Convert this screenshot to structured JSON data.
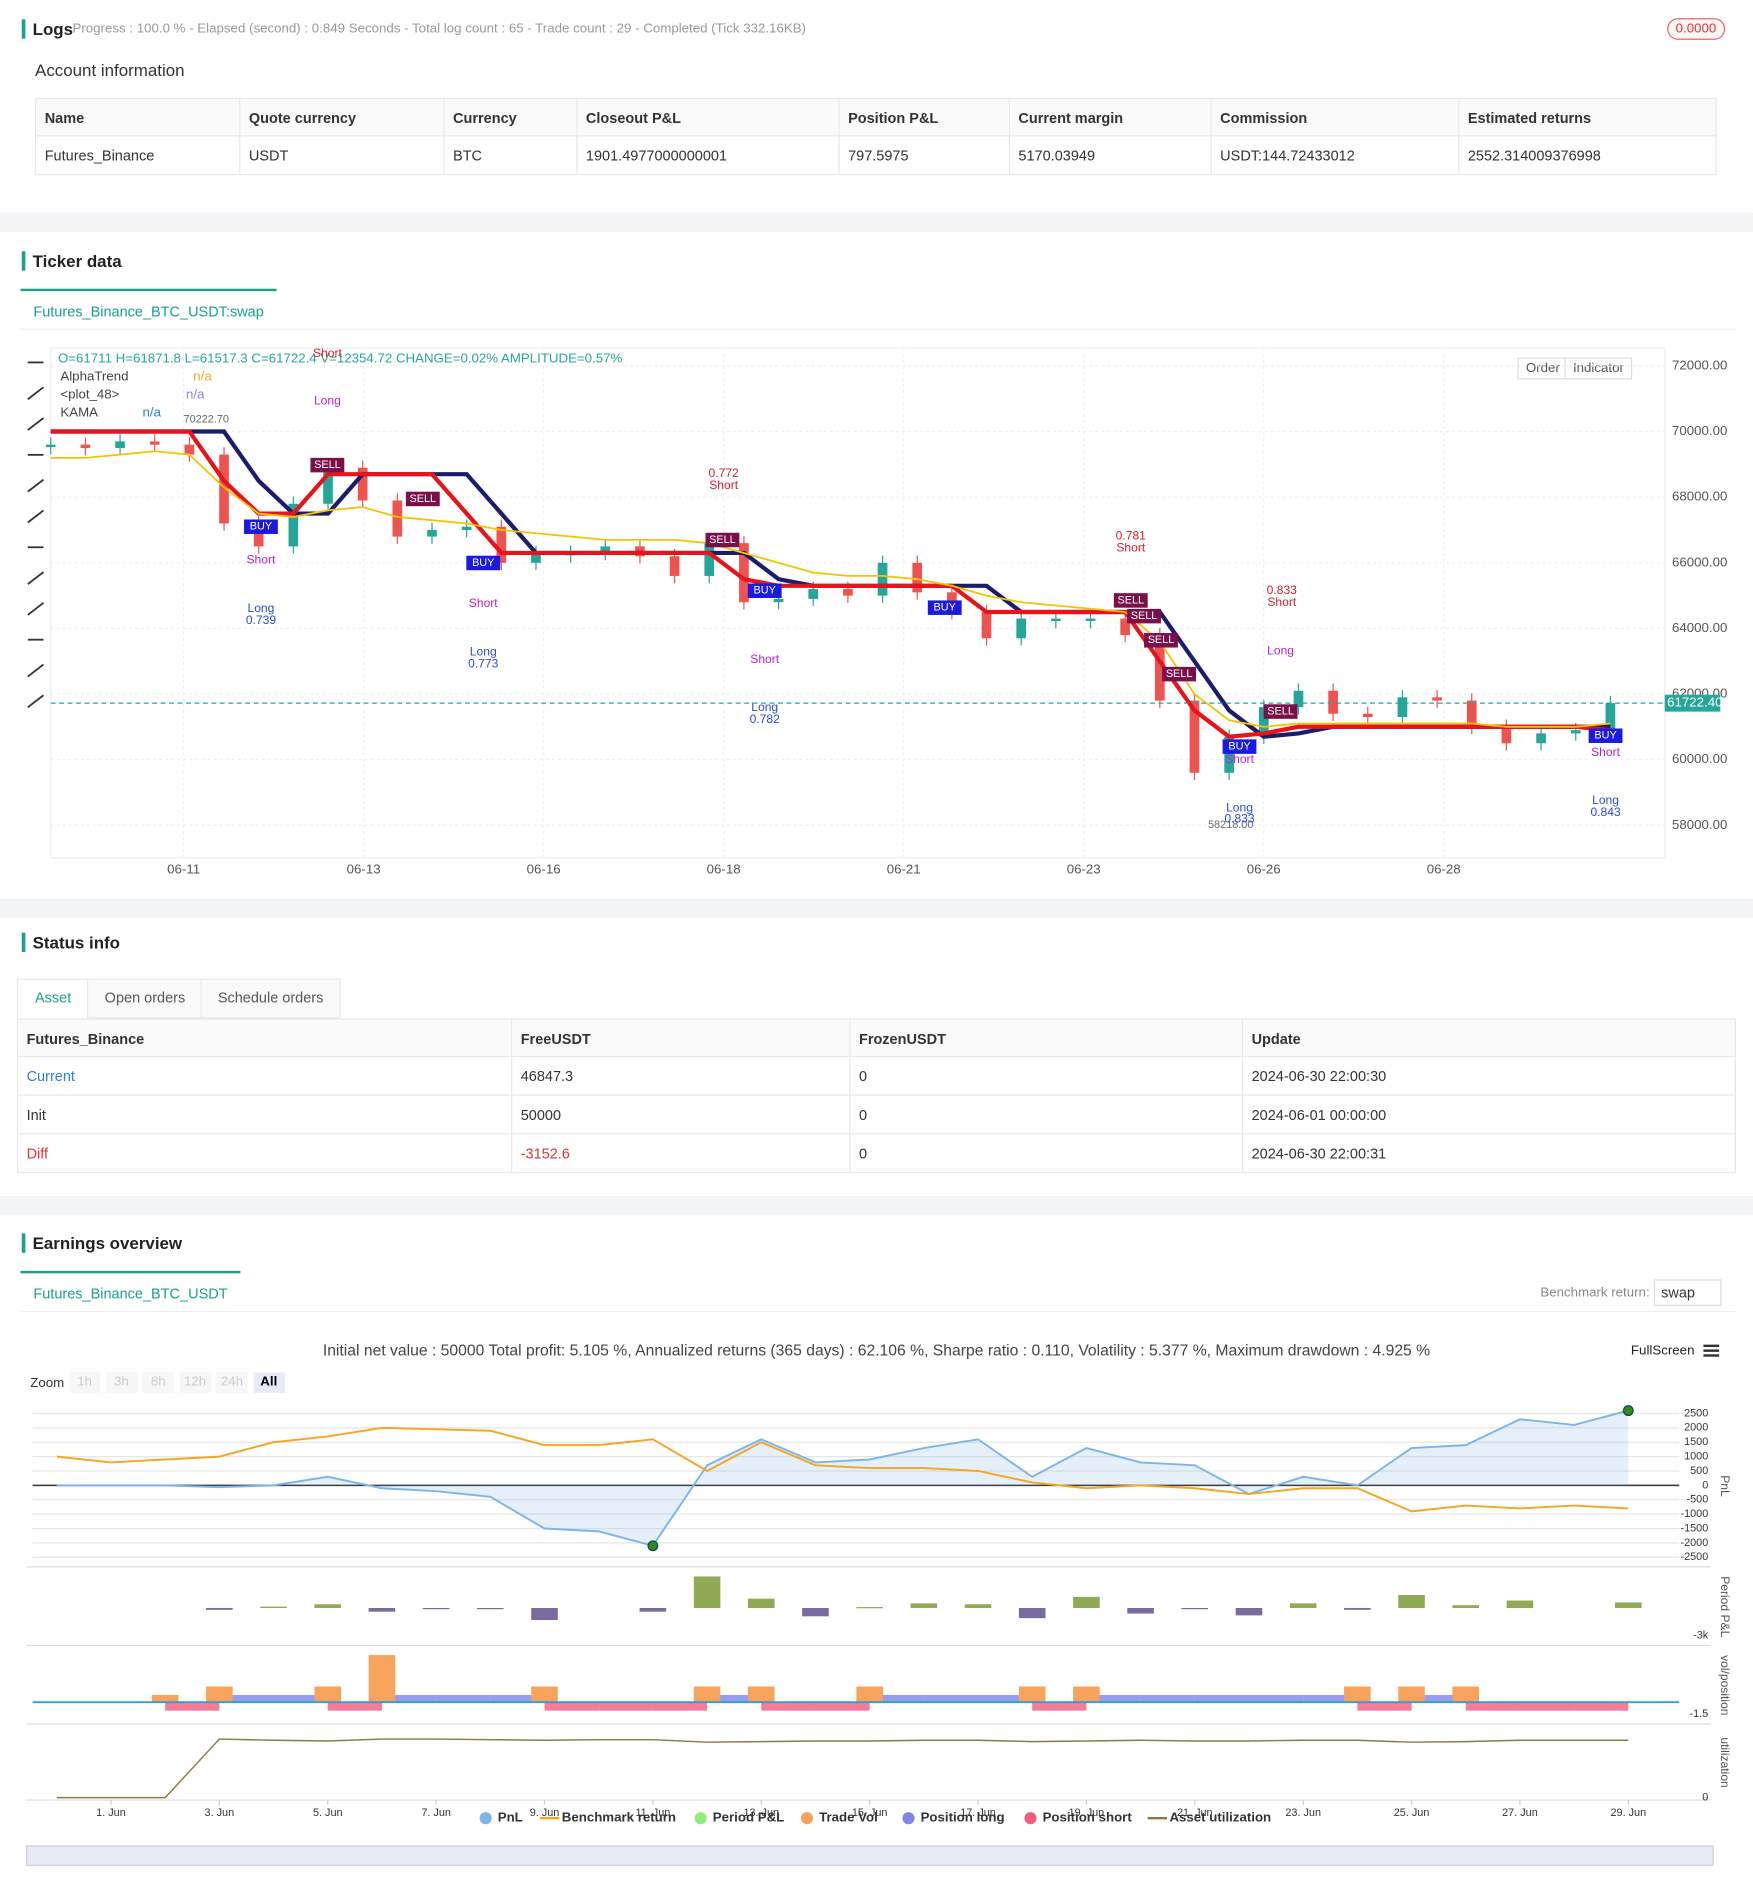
{
  "logs": {
    "title": "Logs",
    "summary": "Progress : 100.0 % - Elapsed (second) : 0.849 Seconds - Total log count : 65 - Trade count : 29 - Completed (Tick 332.16KB)",
    "badge": "0.0000"
  },
  "account": {
    "title": "Account information",
    "columns": [
      "Name",
      "Quote currency",
      "Currency",
      "Closeout P&L",
      "Position P&L",
      "Current margin",
      "Commission",
      "Estimated returns"
    ],
    "rows": [
      [
        "Futures_Binance",
        "USDT",
        "BTC",
        "1901.4977000000001",
        "797.5975",
        "5170.03949",
        "USDT:144.72433012",
        "2552.314009376998"
      ]
    ]
  },
  "ticker": {
    "title": "Ticker data",
    "tab": "Futures_Binance_BTC_USDT:swap",
    "buttons": [
      "Order",
      "Indicator"
    ]
  },
  "status": {
    "title": "Status info",
    "tabs": [
      "Asset",
      "Open orders",
      "Schedule orders"
    ],
    "columns": [
      "Futures_Binance",
      "FreeUSDT",
      "FrozenUSDT",
      "Update"
    ],
    "rows": [
      [
        "Current",
        "46847.3",
        "0",
        "2024-06-30 22:00:30"
      ],
      [
        "Init",
        "50000",
        "0",
        "2024-06-01 00:00:00"
      ],
      [
        "Diff",
        "-3152.6",
        "0",
        "2024-06-30 22:00:31"
      ]
    ]
  },
  "earnings": {
    "title": "Earnings overview",
    "tab": "Futures_Binance_BTC_USDT",
    "benchmark_label": "Benchmark return:",
    "benchmark_value": "swap",
    "summary": "Initial net value : 50000 Total profit: 5.105 %, Annualized returns (365 days) : 62.106 %, Sharpe ratio : 0.110, Volatility : 5.377 %, Maximum drawdown : 4.925 %",
    "fullscreen": "FullScreen",
    "zoom_label": "Zoom",
    "zoom_options": [
      "1h",
      "3h",
      "8h",
      "12h",
      "24h",
      "All"
    ]
  },
  "chart_data": [
    {
      "type": "candlestick",
      "ohlc_text": "O=61711 H=61871.8 L=61517.3 C=61722.4 V=12354.72 CHANGE=0.02% AMPLITUDE=0.57%",
      "up_color": "#26a69a",
      "down_color": "#ef5350",
      "values": [
        69600,
        69500,
        69700,
        69600,
        69300,
        67200,
        66500,
        67800,
        68900,
        67900,
        66800,
        67000,
        67100,
        66000,
        66300,
        66300,
        66500,
        66200,
        65600,
        66600,
        64800,
        64900,
        65200,
        65000,
        66000,
        65100,
        64500,
        63700,
        64300,
        64300,
        64300,
        63800,
        61800,
        59600,
        60700,
        61600,
        62100,
        61400,
        61300,
        61900,
        61800,
        61000,
        60500,
        60800,
        60900,
        61722.4
      ],
      "series": [
        {
          "name": "AlphaTrend",
          "color": "#e8141b",
          "values": [
            70000,
            70000,
            70000,
            70000,
            70000,
            68500,
            67500,
            67500,
            68700,
            68700,
            68700,
            68700,
            67500,
            66300,
            66300,
            66300,
            66300,
            66300,
            66300,
            66300,
            65500,
            65300,
            65300,
            65300,
            65300,
            65300,
            65300,
            64500,
            64500,
            64500,
            64500,
            64500,
            63000,
            61500,
            60700,
            60800,
            61000,
            61000,
            61000,
            61000,
            61000,
            61000,
            61000,
            61000,
            61000,
            60900
          ]
        },
        {
          "name": "<plot_48>",
          "color": "#1c1c6e",
          "values": [
            70000,
            70000,
            70000,
            70000,
            70000,
            70000,
            68500,
            67500,
            67500,
            68700,
            68700,
            68700,
            68700,
            67500,
            66300,
            66300,
            66300,
            66300,
            66300,
            66300,
            66300,
            65500,
            65300,
            65300,
            65300,
            65300,
            65300,
            65300,
            64500,
            64500,
            64500,
            64500,
            64500,
            63000,
            61500,
            60700,
            60800,
            61000,
            61000,
            61000,
            61000,
            61000,
            61000,
            61000,
            61000,
            61000
          ]
        },
        {
          "name": "KAMA",
          "color": "#f5c400",
          "values": [
            69200,
            69200,
            69300,
            69400,
            69300,
            68300,
            67500,
            67400,
            67600,
            67700,
            67400,
            67300,
            67200,
            67000,
            66900,
            66800,
            66700,
            66700,
            66700,
            66600,
            66300,
            66000,
            65700,
            65600,
            65600,
            65500,
            65300,
            65000,
            64800,
            64700,
            64600,
            64500,
            63600,
            62000,
            61200,
            61000,
            61100,
            61100,
            61100,
            61100,
            61100,
            61100,
            61000,
            61000,
            61000,
            61100
          ]
        }
      ],
      "legend_values": [
        "n/a",
        "n/a",
        "n/a"
      ],
      "x_labels": [
        "06-11",
        "06-13",
        "06-16",
        "06-18",
        "06-21",
        "06-23",
        "06-26",
        "06-28"
      ],
      "ylim": [
        57010,
        72550
      ],
      "yticks": [
        {
          "value": 58000,
          "label": "58000.00"
        },
        {
          "value": 60000,
          "label": "60000.00"
        },
        {
          "value": 62000,
          "label": "62000.00"
        },
        {
          "value": 64000,
          "label": "64000.00"
        },
        {
          "value": 66000,
          "label": "66000.00"
        },
        {
          "value": 68000,
          "label": "68000.00"
        },
        {
          "value": 70000,
          "label": "70000.00"
        },
        {
          "value": 72000,
          "label": "72000.00"
        }
      ],
      "grid": true,
      "last_price": {
        "value": 61722.4,
        "label": "61722.40"
      },
      "high": {
        "value": 70222.7,
        "label": "70222.70"
      },
      "low": {
        "value": 58218,
        "label": "58218.00"
      },
      "annotations": [
        "Short",
        "Long",
        "SELL",
        "SELL",
        "BUY",
        "Short",
        "Long",
        "0.739",
        "0.772",
        "Short",
        "SELL",
        "BUY",
        "Short",
        "Long",
        "0.773",
        "BUY",
        "Short",
        "Long",
        "0.782",
        "0.781",
        "Short",
        "SELL",
        "SELL",
        "SELL",
        "SELL",
        "BUY",
        "0.833",
        "Short",
        "Long",
        "SELL",
        "BUY",
        "Short",
        "Long",
        "0.833",
        "BUY",
        "Short",
        "Long",
        "0.843"
      ]
    },
    {
      "type": "line",
      "y_label": "PnL",
      "grid": true,
      "x": [
        0,
        1,
        2,
        3,
        4,
        5,
        6,
        7,
        8,
        9,
        10,
        11,
        12,
        13,
        14,
        15,
        16,
        17,
        18,
        19,
        20,
        21,
        22,
        23,
        24,
        25,
        26,
        27,
        28,
        29
      ],
      "xlim": [
        0,
        29.94
      ],
      "xticks": [
        {
          "value": 1,
          "label": "1. Jun"
        },
        {
          "value": 3,
          "label": "3. Jun"
        },
        {
          "value": 5,
          "label": "5. Jun"
        },
        {
          "value": 7,
          "label": "7. Jun"
        },
        {
          "value": 9,
          "label": "9. Jun"
        },
        {
          "value": 11,
          "label": "11. Jun"
        },
        {
          "value": 13,
          "label": "13. Jun"
        },
        {
          "value": 15,
          "label": "15. Jun"
        },
        {
          "value": 17,
          "label": "17. Jun"
        },
        {
          "value": 19,
          "label": "19. Jun"
        },
        {
          "value": 21,
          "label": "21. Jun"
        },
        {
          "value": 23,
          "label": "23. Jun"
        },
        {
          "value": 25,
          "label": "25. Jun"
        },
        {
          "value": 27,
          "label": "27. Jun"
        },
        {
          "value": 29,
          "label": "29. Jun"
        }
      ],
      "ylim": [
        -2750,
        2710
      ],
      "yticks": [
        2500,
        2000,
        1500,
        1000,
        500,
        0,
        -500,
        -1000,
        -1500,
        -2000,
        -2500
      ],
      "series": [
        {
          "name": "PnL",
          "color": "#7cb5ec",
          "values": [
            0,
            0,
            0,
            -60,
            0,
            300,
            -100,
            -200,
            -400,
            -1500,
            -1600,
            -2100,
            700,
            1600,
            800,
            900,
            1300,
            1600,
            300,
            1300,
            800,
            700,
            -300,
            300,
            0,
            1300,
            1400,
            2300,
            2100,
            2600
          ]
        },
        {
          "name": "Benchmark return",
          "color": "#f5a623",
          "values": [
            1000,
            800,
            900,
            1000,
            1500,
            1700,
            2000,
            1950,
            1900,
            1400,
            1400,
            1600,
            500,
            1500,
            700,
            600,
            600,
            500,
            100,
            -100,
            0,
            -100,
            -300,
            -100,
            -100,
            -900,
            -700,
            -800,
            -700,
            -800
          ]
        }
      ]
    },
    {
      "type": "bar",
      "name": "Period P&L",
      "y_label": "Period P&L",
      "colors": {
        "positive": "#90a955",
        "negative": "#7a6a9e"
      },
      "legend_color": "#90ed7d",
      "x": [
        3,
        4,
        5,
        6,
        7,
        8,
        9,
        11,
        12,
        13,
        14,
        15,
        16,
        17,
        18,
        19,
        20,
        21,
        22,
        23,
        24,
        25,
        26,
        27,
        29
      ],
      "xlim": [
        0,
        29.94
      ],
      "values": [
        -200,
        150,
        400,
        -400,
        -100,
        -100,
        -1300,
        -400,
        3400,
        1000,
        -900,
        100,
        500,
        400,
        -1100,
        1200,
        -600,
        -100,
        -800,
        500,
        -200,
        1400,
        300,
        800,
        600
      ],
      "ylim": [
        -3780,
        4040
      ],
      "yticks": [
        {
          "value": -3000,
          "label": "-3k"
        }
      ]
    },
    {
      "type": "bar",
      "y_label": "vol/position",
      "x": [
        0,
        1,
        2,
        3,
        4,
        5,
        6,
        7,
        8,
        9,
        10,
        11,
        12,
        13,
        14,
        15,
        16,
        17,
        18,
        19,
        20,
        21,
        22,
        23,
        24,
        25,
        26,
        27,
        28,
        29
      ],
      "xlim": [
        0,
        29.94
      ],
      "ylim": [
        -2.4,
        6.6
      ],
      "yticks": [
        -1.5
      ],
      "series": [
        {
          "name": "Trade Vol",
          "color": "#f7a35c",
          "values": [
            null,
            null,
            0.9,
            1.95,
            null,
            1.95,
            5.85,
            null,
            null,
            1.95,
            null,
            null,
            1.95,
            1.95,
            null,
            1.95,
            null,
            null,
            1.95,
            1.95,
            null,
            null,
            null,
            null,
            1.95,
            1.95,
            1.95,
            null,
            null,
            null
          ]
        },
        {
          "name": "Position long",
          "color": "#8085e9",
          "values": [
            null,
            null,
            null,
            0.9,
            0.9,
            null,
            0.9,
            0.9,
            0.9,
            null,
            null,
            null,
            0.9,
            null,
            null,
            0.9,
            0.9,
            0.9,
            null,
            0.9,
            0.9,
            0.9,
            0.9,
            0.9,
            null,
            0.9,
            null,
            null,
            null,
            null
          ]
        },
        {
          "name": "Position short",
          "color": "#f15c80",
          "values": [
            null,
            null,
            -1.05,
            null,
            null,
            -1.05,
            null,
            null,
            null,
            -1.05,
            -1.05,
            -1.05,
            null,
            -1.05,
            -1.05,
            null,
            null,
            null,
            -1.05,
            null,
            null,
            null,
            null,
            null,
            -1.05,
            null,
            -1.05,
            -1.05,
            -1.05,
            null
          ]
        }
      ]
    },
    {
      "type": "line",
      "y_label": "utilization",
      "x": [
        0,
        1,
        2,
        3,
        4,
        5,
        6,
        7,
        8,
        9,
        10,
        11,
        12,
        13,
        14,
        15,
        16,
        17,
        18,
        19,
        20,
        21,
        22,
        23,
        24,
        25,
        26,
        27,
        28,
        29
      ],
      "xlim": [
        0,
        29.94
      ],
      "ylim": [
        0,
        1.1
      ],
      "yticks": [
        0
      ],
      "series": [
        {
          "name": "Asset utilization",
          "color": "#8d7a3c",
          "values": [
            0,
            0,
            0,
            0.92,
            0.9,
            0.89,
            0.92,
            0.92,
            0.91,
            0.9,
            0.91,
            0.91,
            0.87,
            0.88,
            0.89,
            0.89,
            0.9,
            0.9,
            0.88,
            0.89,
            0.9,
            0.89,
            0.89,
            0.9,
            0.9,
            0.87,
            0.88,
            0.9,
            0.9,
            0.9
          ]
        }
      ]
    }
  ]
}
